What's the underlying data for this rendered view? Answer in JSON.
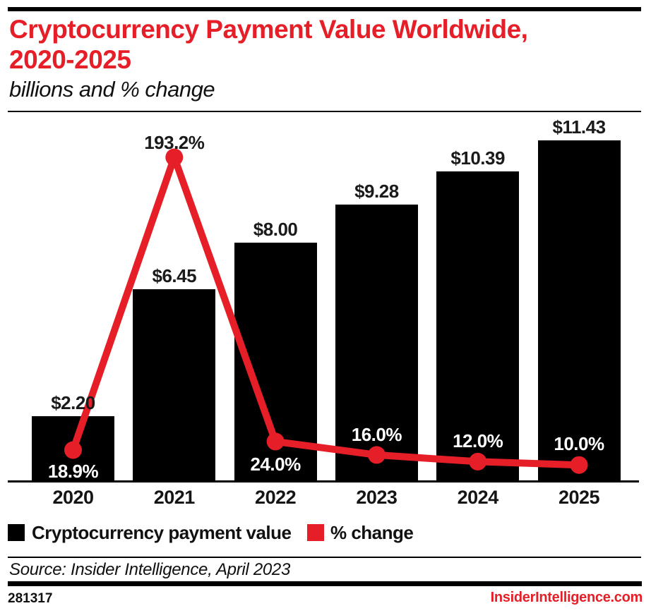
{
  "header": {
    "title_line1": "Cryptocurrency Payment Value Worldwide,",
    "title_line2": "2020-2025",
    "subtitle": "billions and % change"
  },
  "legend": [
    {
      "label": "Cryptocurrency payment value",
      "color": "#000000"
    },
    {
      "label": "% change",
      "color": "#e61e28"
    }
  ],
  "footer": {
    "source": "Source: Insider Intelligence, April 2023",
    "chart_id": "281317",
    "site": "InsiderIntelligence.com"
  },
  "colors": {
    "accent_red": "#e61e28",
    "bar_black": "#000000",
    "text_dark": "#1a1a1a"
  },
  "chart_data": {
    "type": "combo_bar_line",
    "title": "Cryptocurrency Payment Value Worldwide, 2020-2025",
    "subtitle": "billions and % change",
    "categories": [
      "2020",
      "2021",
      "2022",
      "2023",
      "2024",
      "2025"
    ],
    "series": [
      {
        "name": "Cryptocurrency payment value",
        "type": "bar",
        "unit": "$ billions",
        "values": [
          2.2,
          6.45,
          8.0,
          9.28,
          10.39,
          11.43
        ],
        "labels": [
          "$2.20",
          "$6.45",
          "$8.00",
          "$9.28",
          "$10.39",
          "$11.43"
        ],
        "color": "#000000"
      },
      {
        "name": "% change",
        "type": "line",
        "unit": "%",
        "values": [
          18.9,
          193.2,
          24.0,
          16.0,
          12.0,
          10.0
        ],
        "labels": [
          "18.9%",
          "193.2%",
          "24.0%",
          "16.0%",
          "12.0%",
          "10.0%"
        ],
        "color": "#e61e28",
        "label_colors": [
          "#ffffff",
          "#1a1a1a",
          "#ffffff",
          "#ffffff",
          "#ffffff",
          "#ffffff"
        ],
        "label_dy": [
          15,
          -36,
          17,
          -44,
          -44,
          -45
        ]
      }
    ],
    "axis": {
      "y_axis_visible": false,
      "grid": false,
      "baseline_at_zero": true
    },
    "legend_position": "bottom",
    "ylim_bar_billions": [
      0,
      12.1
    ],
    "ylim_pct": [
      0,
      215
    ]
  }
}
